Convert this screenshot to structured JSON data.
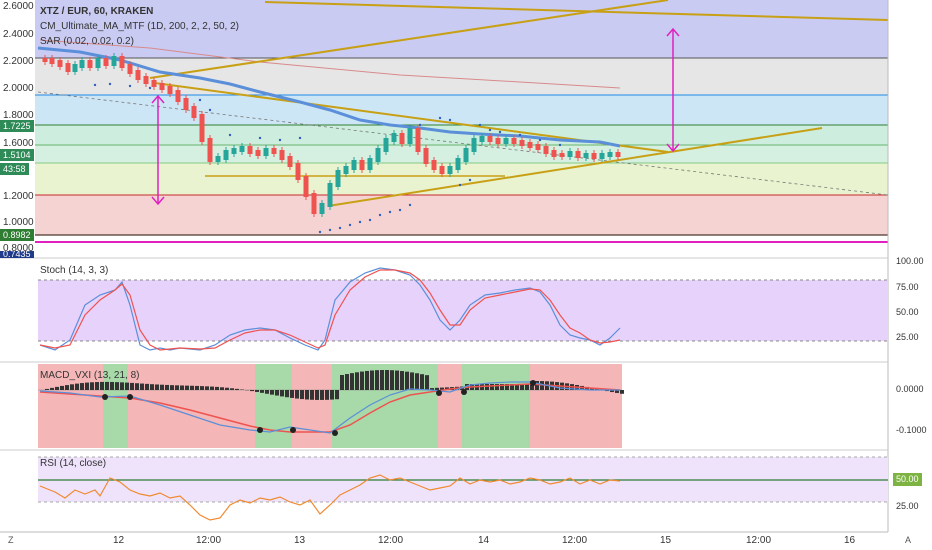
{
  "main": {
    "symbol_line": "XTZ / EUR, 60, KRAKEN",
    "indicators": [
      "CM_Ultimate_MA_MTF (1D, 200, 2, 2, 50, 2)",
      "SAR (0.02, 0.02, 0.2)"
    ],
    "y_ticks": [
      "2.6000",
      "2.4000",
      "2.2000",
      "2.0000",
      "1.8000",
      "1.6000",
      "1.2000",
      "1.0000",
      "0.8000"
    ],
    "left_badges": [
      {
        "text": "1.7225",
        "color": "#2e8b57"
      },
      {
        "text": "1.5104",
        "color": "#2e8b57"
      },
      {
        "text": "43:58",
        "color": "#2e8b57"
      },
      {
        "text": "0.8982",
        "color": "#2e7d32"
      },
      {
        "text": "0.7435",
        "color": "#1e3a8a"
      }
    ]
  },
  "stoch": {
    "label": "Stoch (14, 3, 3)",
    "ticks": [
      "100.00",
      "75.00",
      "50.00",
      "25.00"
    ]
  },
  "macd": {
    "label": "MACD_VXI (13, 21, 8)",
    "ticks": [
      "0.0000",
      "-0.1000"
    ]
  },
  "rsi": {
    "label": "RSI (14, close)",
    "ticks": [
      "50.00",
      "25.00"
    ]
  },
  "time_axis": {
    "labels": [
      "12",
      "12:00",
      "13",
      "12:00",
      "14",
      "12:00",
      "15",
      "12:00",
      "16"
    ],
    "left_corner": "Z",
    "right_corner": "A"
  },
  "colors": {
    "up": "#26a69a",
    "down": "#ef5350",
    "ma": "#5b8fd9",
    "trend": "#c8a015",
    "arrow": "#e020c0"
  }
}
